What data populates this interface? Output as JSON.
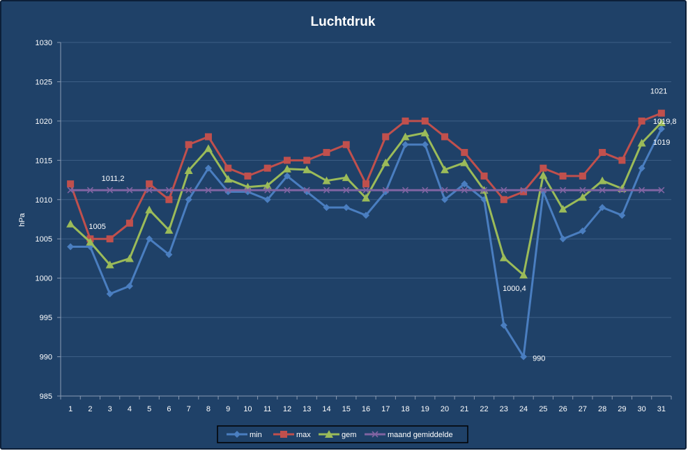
{
  "chart_data": {
    "type": "line",
    "title": "Luchtdruk",
    "xlabel": "",
    "ylabel": "hPa",
    "ylim": [
      985,
      1030
    ],
    "yticks": [
      985,
      990,
      995,
      1000,
      1005,
      1010,
      1015,
      1020,
      1025,
      1030
    ],
    "x": [
      1,
      2,
      3,
      4,
      5,
      6,
      7,
      8,
      9,
      10,
      11,
      12,
      13,
      14,
      15,
      16,
      17,
      18,
      19,
      20,
      21,
      22,
      23,
      24,
      25,
      26,
      27,
      28,
      29,
      30,
      31
    ],
    "grid": "horizontal",
    "legend_position": "bottom",
    "series": [
      {
        "name": "min",
        "color": "#4a7ec0",
        "marker": "diamond",
        "values": [
          1004,
          1004,
          998,
          999,
          1005,
          1003,
          1010,
          1014,
          1011,
          1011,
          1010,
          1013,
          1011,
          1009,
          1009,
          1008,
          1011,
          1017,
          1017,
          1010,
          1012,
          1010,
          994,
          990,
          1011,
          1005,
          1006,
          1009,
          1008,
          1014,
          1019
        ]
      },
      {
        "name": "max",
        "color": "#c0504d",
        "marker": "square",
        "values": [
          1012,
          1005,
          1005,
          1007,
          1012,
          1010,
          1017,
          1018,
          1014,
          1013,
          1014,
          1015,
          1015,
          1016,
          1017,
          1012,
          1018,
          1020,
          1020,
          1018,
          1016,
          1013,
          1010,
          1011,
          1014,
          1013,
          1013,
          1016,
          1015,
          1020,
          1021
        ]
      },
      {
        "name": "gem",
        "color": "#9bbb59",
        "marker": "triangle",
        "values": [
          1006.9,
          1004.6,
          1001.7,
          1002.5,
          1008.7,
          1006.1,
          1013.7,
          1016.5,
          1012.6,
          1011.6,
          1011.8,
          1013.9,
          1013.8,
          1012.4,
          1012.8,
          1010.2,
          1014.7,
          1018,
          1018.5,
          1013.8,
          1014.7,
          1011.2,
          1002.6,
          1000.4,
          1013.1,
          1008.8,
          1010.3,
          1012.4,
          1011.4,
          1017.2,
          1019.8
        ]
      },
      {
        "name": "maand gemiddelde",
        "color": "#8064a2",
        "marker": "x",
        "values": [
          1011.2,
          1011.2,
          1011.2,
          1011.2,
          1011.2,
          1011.2,
          1011.2,
          1011.2,
          1011.2,
          1011.2,
          1011.2,
          1011.2,
          1011.2,
          1011.2,
          1011.2,
          1011.2,
          1011.2,
          1011.2,
          1011.2,
          1011.2,
          1011.2,
          1011.2,
          1011.2,
          1011.2,
          1011.2,
          1011.2,
          1011.2,
          1011.2,
          1011.2,
          1011.2,
          1011.2
        ]
      }
    ],
    "annotations": [
      {
        "text": "1011,2",
        "x": 3,
        "y": 1011.2,
        "series": "maand gemiddelde"
      },
      {
        "text": "1005",
        "x": 2,
        "y": 1005,
        "series": "max"
      },
      {
        "text": "1000,4",
        "x": 24,
        "y": 1000.4,
        "series": "gem"
      },
      {
        "text": "990",
        "x": 24,
        "y": 990,
        "series": "min"
      },
      {
        "text": "1021",
        "x": 31,
        "y": 1021,
        "series": "max"
      },
      {
        "text": "1019,8",
        "x": 31,
        "y": 1019.8,
        "series": "gem"
      },
      {
        "text": "1019",
        "x": 31,
        "y": 1019,
        "series": "min"
      }
    ],
    "colors": {
      "background": "#1f4168",
      "gridline": "#3d5f86",
      "axis": "#8a9bb3",
      "text": "#ffffff",
      "border": "#0c1f38"
    }
  }
}
